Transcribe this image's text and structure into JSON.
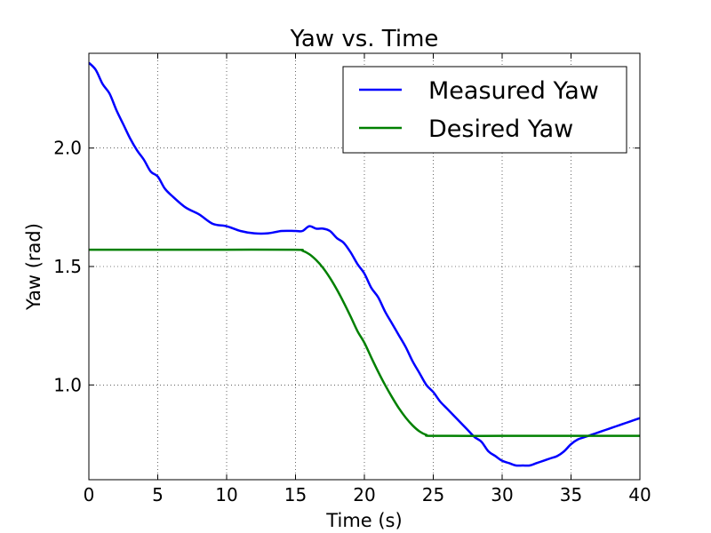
{
  "chart_data": {
    "type": "line",
    "title": "Yaw vs. Time",
    "xlabel": "Time (s)",
    "ylabel": "Yaw (rad)",
    "xlim": [
      0,
      40
    ],
    "ylim": [
      0.6,
      2.4
    ],
    "xticks": [
      0,
      5,
      10,
      15,
      20,
      25,
      30,
      35,
      40
    ],
    "xtick_labels": [
      "0",
      "5",
      "10",
      "15",
      "20",
      "25",
      "30",
      "35",
      "40"
    ],
    "yticks": [
      1.0,
      1.5,
      2.0
    ],
    "ytick_labels": [
      "1.0",
      "1.5",
      "2.0"
    ],
    "grid": true,
    "legend_position": "top-right",
    "series": [
      {
        "name": "Measured Yaw",
        "color": "#0000ff",
        "x": [
          0,
          0.5,
          1,
          1.5,
          2,
          2.5,
          3,
          3.5,
          4,
          4.5,
          5,
          5.5,
          6,
          7,
          8,
          9,
          10,
          11,
          12,
          13,
          14,
          15,
          15.5,
          16,
          16.5,
          17,
          17.5,
          18,
          18.5,
          19,
          19.5,
          20,
          20.5,
          21,
          21.5,
          22,
          22.5,
          23,
          23.5,
          24,
          24.5,
          25,
          25.5,
          26,
          26.5,
          27,
          27.5,
          28,
          28.5,
          29,
          29.5,
          30,
          30.5,
          31,
          31.5,
          32,
          32.5,
          33,
          33.5,
          34,
          34.5,
          35,
          35.5,
          36,
          36.5,
          37,
          37.5,
          38,
          38.5,
          39,
          39.5,
          40
        ],
        "y": [
          2.36,
          2.33,
          2.27,
          2.23,
          2.16,
          2.1,
          2.04,
          1.99,
          1.95,
          1.9,
          1.88,
          1.83,
          1.8,
          1.75,
          1.72,
          1.68,
          1.67,
          1.65,
          1.64,
          1.64,
          1.65,
          1.65,
          1.65,
          1.67,
          1.66,
          1.66,
          1.65,
          1.62,
          1.6,
          1.56,
          1.51,
          1.47,
          1.41,
          1.37,
          1.31,
          1.26,
          1.21,
          1.16,
          1.1,
          1.05,
          1.0,
          0.97,
          0.93,
          0.9,
          0.87,
          0.84,
          0.81,
          0.78,
          0.76,
          0.72,
          0.7,
          0.68,
          0.67,
          0.66,
          0.66,
          0.66,
          0.67,
          0.68,
          0.69,
          0.7,
          0.72,
          0.75,
          0.77,
          0.78,
          0.79,
          0.8,
          0.81,
          0.82,
          0.83,
          0.84,
          0.85,
          0.86
        ]
      },
      {
        "name": "Desired Yaw",
        "color": "#008000",
        "x": [
          0,
          5,
          10,
          15,
          15.5,
          16,
          16.5,
          17,
          17.5,
          18,
          18.5,
          19,
          19.5,
          20,
          20.5,
          21,
          21.5,
          22,
          22.5,
          23,
          23.5,
          24,
          24.5,
          25,
          30,
          35,
          40
        ],
        "y": [
          1.571,
          1.571,
          1.571,
          1.571,
          1.567,
          1.552,
          1.527,
          1.494,
          1.452,
          1.403,
          1.348,
          1.289,
          1.227,
          1.178,
          1.116,
          1.056,
          1.0,
          0.949,
          0.902,
          0.862,
          0.829,
          0.804,
          0.789,
          0.785,
          0.785,
          0.785,
          0.785
        ]
      }
    ]
  }
}
